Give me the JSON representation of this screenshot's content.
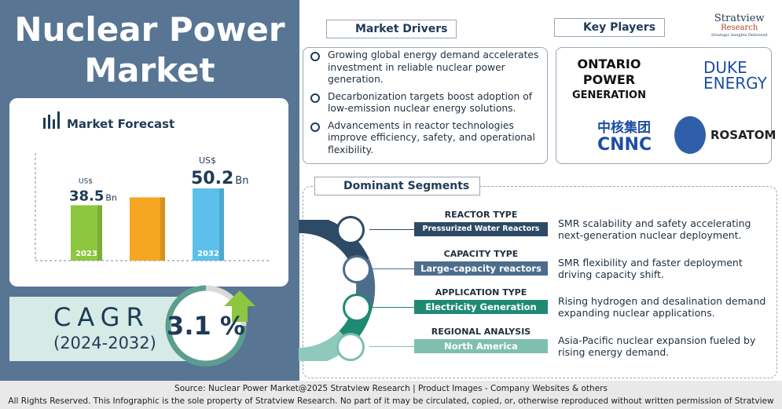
{
  "header": {
    "title_line1": "Nuclear Power",
    "title_line2": "Market"
  },
  "forecast": {
    "title": "Market Forecast",
    "bars": [
      {
        "year": "2023",
        "value": 38.5,
        "currency": "US$",
        "unit": "Bn",
        "color": "#8dc63f"
      },
      {
        "value": 44,
        "color": "#f5a623"
      },
      {
        "year": "2032",
        "value": 50.2,
        "currency": "US$",
        "unit": "Bn",
        "color": "#5bc0eb"
      }
    ]
  },
  "cagr": {
    "label": "CAGR",
    "period": "(2024-2032)",
    "value": 3.1,
    "unit": "%"
  },
  "drivers": {
    "title": "Market Drivers",
    "items": [
      "Growing global energy demand accelerates investment in reliable nuclear power generation.",
      "Decarbonization targets boost adoption of low-emission nuclear energy solutions.",
      "Advancements in reactor technologies improve efficiency, safety, and operational flexibility."
    ]
  },
  "players": {
    "title": "Key Players",
    "logos": [
      {
        "line1": "ONTARIO POWER",
        "line2": "GENERATION"
      },
      {
        "line1": "DUKE",
        "line2": "ENERGY"
      },
      {
        "line1": "中核集团",
        "line2": "CNNC"
      },
      {
        "line1": "ROSATOM"
      }
    ]
  },
  "brand": {
    "name": "Stratview",
    "sub": "Research",
    "tagline": "Strategic Insights Delivered"
  },
  "segments": {
    "title": "Dominant Segments",
    "rows": [
      {
        "type": "REACTOR TYPE",
        "leader": "Pressurized Water Reactors (PWRs)",
        "note": "SMR scalability and safety accelerating next-generation nuclear deployment."
      },
      {
        "type": "CAPACITY TYPE",
        "leader": "Large-capacity reactors",
        "note": "SMR flexibility and faster deployment driving capacity shift."
      },
      {
        "type": "APPLICATION TYPE",
        "leader": "Electricity Generation",
        "note": "Rising hydrogen and desalination demand expanding nuclear applications."
      },
      {
        "type": "REGIONAL ANALYSIS",
        "leader": "North America",
        "note": "Asia-Pacific nuclear expansion fueled by rising energy demand."
      }
    ]
  },
  "footer": {
    "source": "Source:  Nuclear Power Market@2025 Stratview Research | Product Images  - Company Websites & others",
    "rights": "All Rights Reserved. This Infographic is the sole property of Stratview Research. No part of it may be circulated, copied, or, otherwise reproduced without written permission of Stratview Research."
  }
}
